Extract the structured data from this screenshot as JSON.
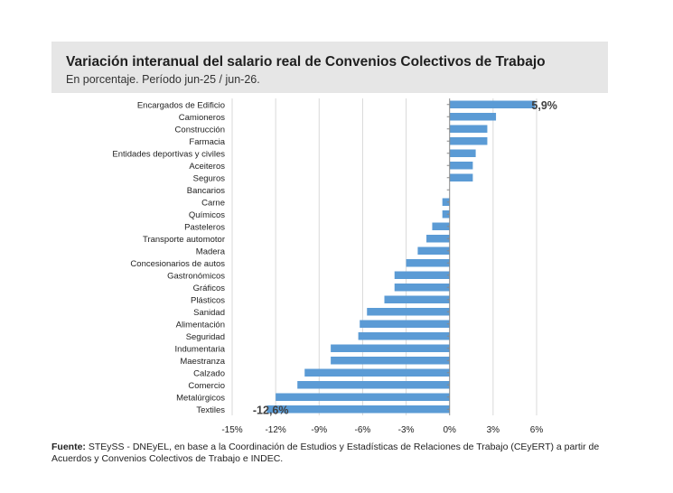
{
  "header": {
    "title": "Variación interanual del salario real de Convenios Colectivos de Trabajo",
    "subtitle": "En porcentaje. Período jun-25 / jun-26."
  },
  "footer": {
    "source_label": "Fuente:",
    "source_text": " STEySS - DNEyEL, en base a la Coordinación de Estudios y Estadísticas de Relaciones de Trabajo (CEyERT) a partir de Acuerdos y Convenios Colectivos de Trabajo e INDEC."
  },
  "colors": {
    "bar": "#5b9bd5",
    "grid": "#d9d9d9",
    "header_bg": "#e6e6e6"
  },
  "chart_data": {
    "type": "bar",
    "orientation": "horizontal",
    "categories": [
      "Encargados de Edificio",
      "Camioneros",
      "Construcción",
      "Farmacia",
      "Entidades deportivas y civiles",
      "Aceiteros",
      "Seguros",
      "Bancarios",
      "Carne",
      "Químicos",
      "Pasteleros",
      "Transporte automotor",
      "Madera",
      "Concesionarios de autos",
      "Gastronómicos",
      "Gráficos",
      "Plásticos",
      "Sanidad",
      "Alimentación",
      "Seguridad",
      "Indumentaria",
      "Maestranza",
      "Calzado",
      "Comercio",
      "Metalúrgicos",
      "Textiles"
    ],
    "values": [
      5.9,
      3.2,
      2.6,
      2.6,
      1.8,
      1.6,
      1.6,
      0.0,
      -0.5,
      -0.5,
      -1.2,
      -1.6,
      -2.2,
      -3.0,
      -3.8,
      -3.8,
      -4.5,
      -5.7,
      -6.2,
      -6.3,
      -8.2,
      -8.2,
      -10.0,
      -10.5,
      -12.0,
      -12.6
    ],
    "xlim": [
      -15,
      6
    ],
    "xticks": [
      "-15%",
      "-12%",
      "-9%",
      "-6%",
      "-3%",
      "0%",
      "3%",
      "6%"
    ],
    "xtick_values": [
      -15,
      -12,
      -9,
      -6,
      -3,
      0,
      3,
      6
    ],
    "annotations": [
      {
        "category": "Encargados de Edificio",
        "text": "5,9%"
      },
      {
        "category": "Textiles",
        "text": "-12,6%"
      }
    ],
    "grid": "vertical"
  }
}
